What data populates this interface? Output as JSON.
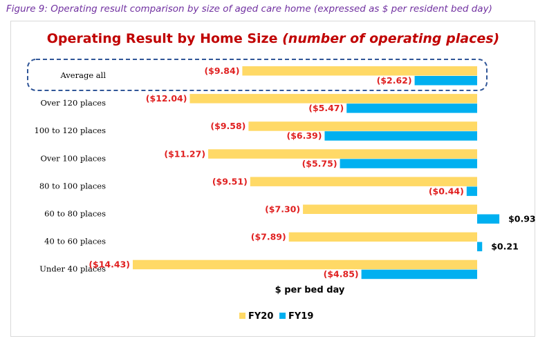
{
  "figure_caption": "Figure 9: Operating result comparison by size of aged care home (expressed as $ per resident bed day)",
  "chart_data": {
    "type": "bar",
    "orientation": "horizontal",
    "title": "Operating Result by Home Size",
    "title_italic": "(number of operating places)",
    "xlabel": "$ per bed day",
    "ylabel": "",
    "categories": [
      "Average all",
      "Over 120 places",
      "100 to 120 places",
      "Over 100 places",
      "80 to 100 places",
      "60 to 80 places",
      "40 to 60 places",
      "Under 40 places"
    ],
    "series": [
      {
        "name": "FY20",
        "color": "#ffd966",
        "values": [
          -9.84,
          -12.04,
          -9.58,
          -11.27,
          -9.51,
          -7.3,
          -7.89,
          -14.43
        ],
        "labels": [
          "($9.84)",
          "($12.04)",
          "($9.58)",
          "($11.27)",
          "($9.51)",
          "($7.30)",
          "($7.89)",
          "($14.43)"
        ]
      },
      {
        "name": "FY19",
        "color": "#00b0f0",
        "values": [
          -2.62,
          -5.47,
          -6.39,
          -5.75,
          -0.44,
          0.93,
          0.21,
          -4.85
        ],
        "labels": [
          "($2.62)",
          "($5.47)",
          "($6.39)",
          "($5.75)",
          "($0.44)",
          "$0.93",
          "$0.21",
          "($4.85)"
        ]
      }
    ],
    "xlim": [
      -14.43,
      0.93
    ],
    "grid": false,
    "legend_position": "bottom",
    "highlighted_category": "Average all",
    "highlight_style": "dashed-rounded-box",
    "highlight_color": "#2f5597",
    "negative_label_color": "#e02020",
    "positive_label_color": "#000000"
  }
}
